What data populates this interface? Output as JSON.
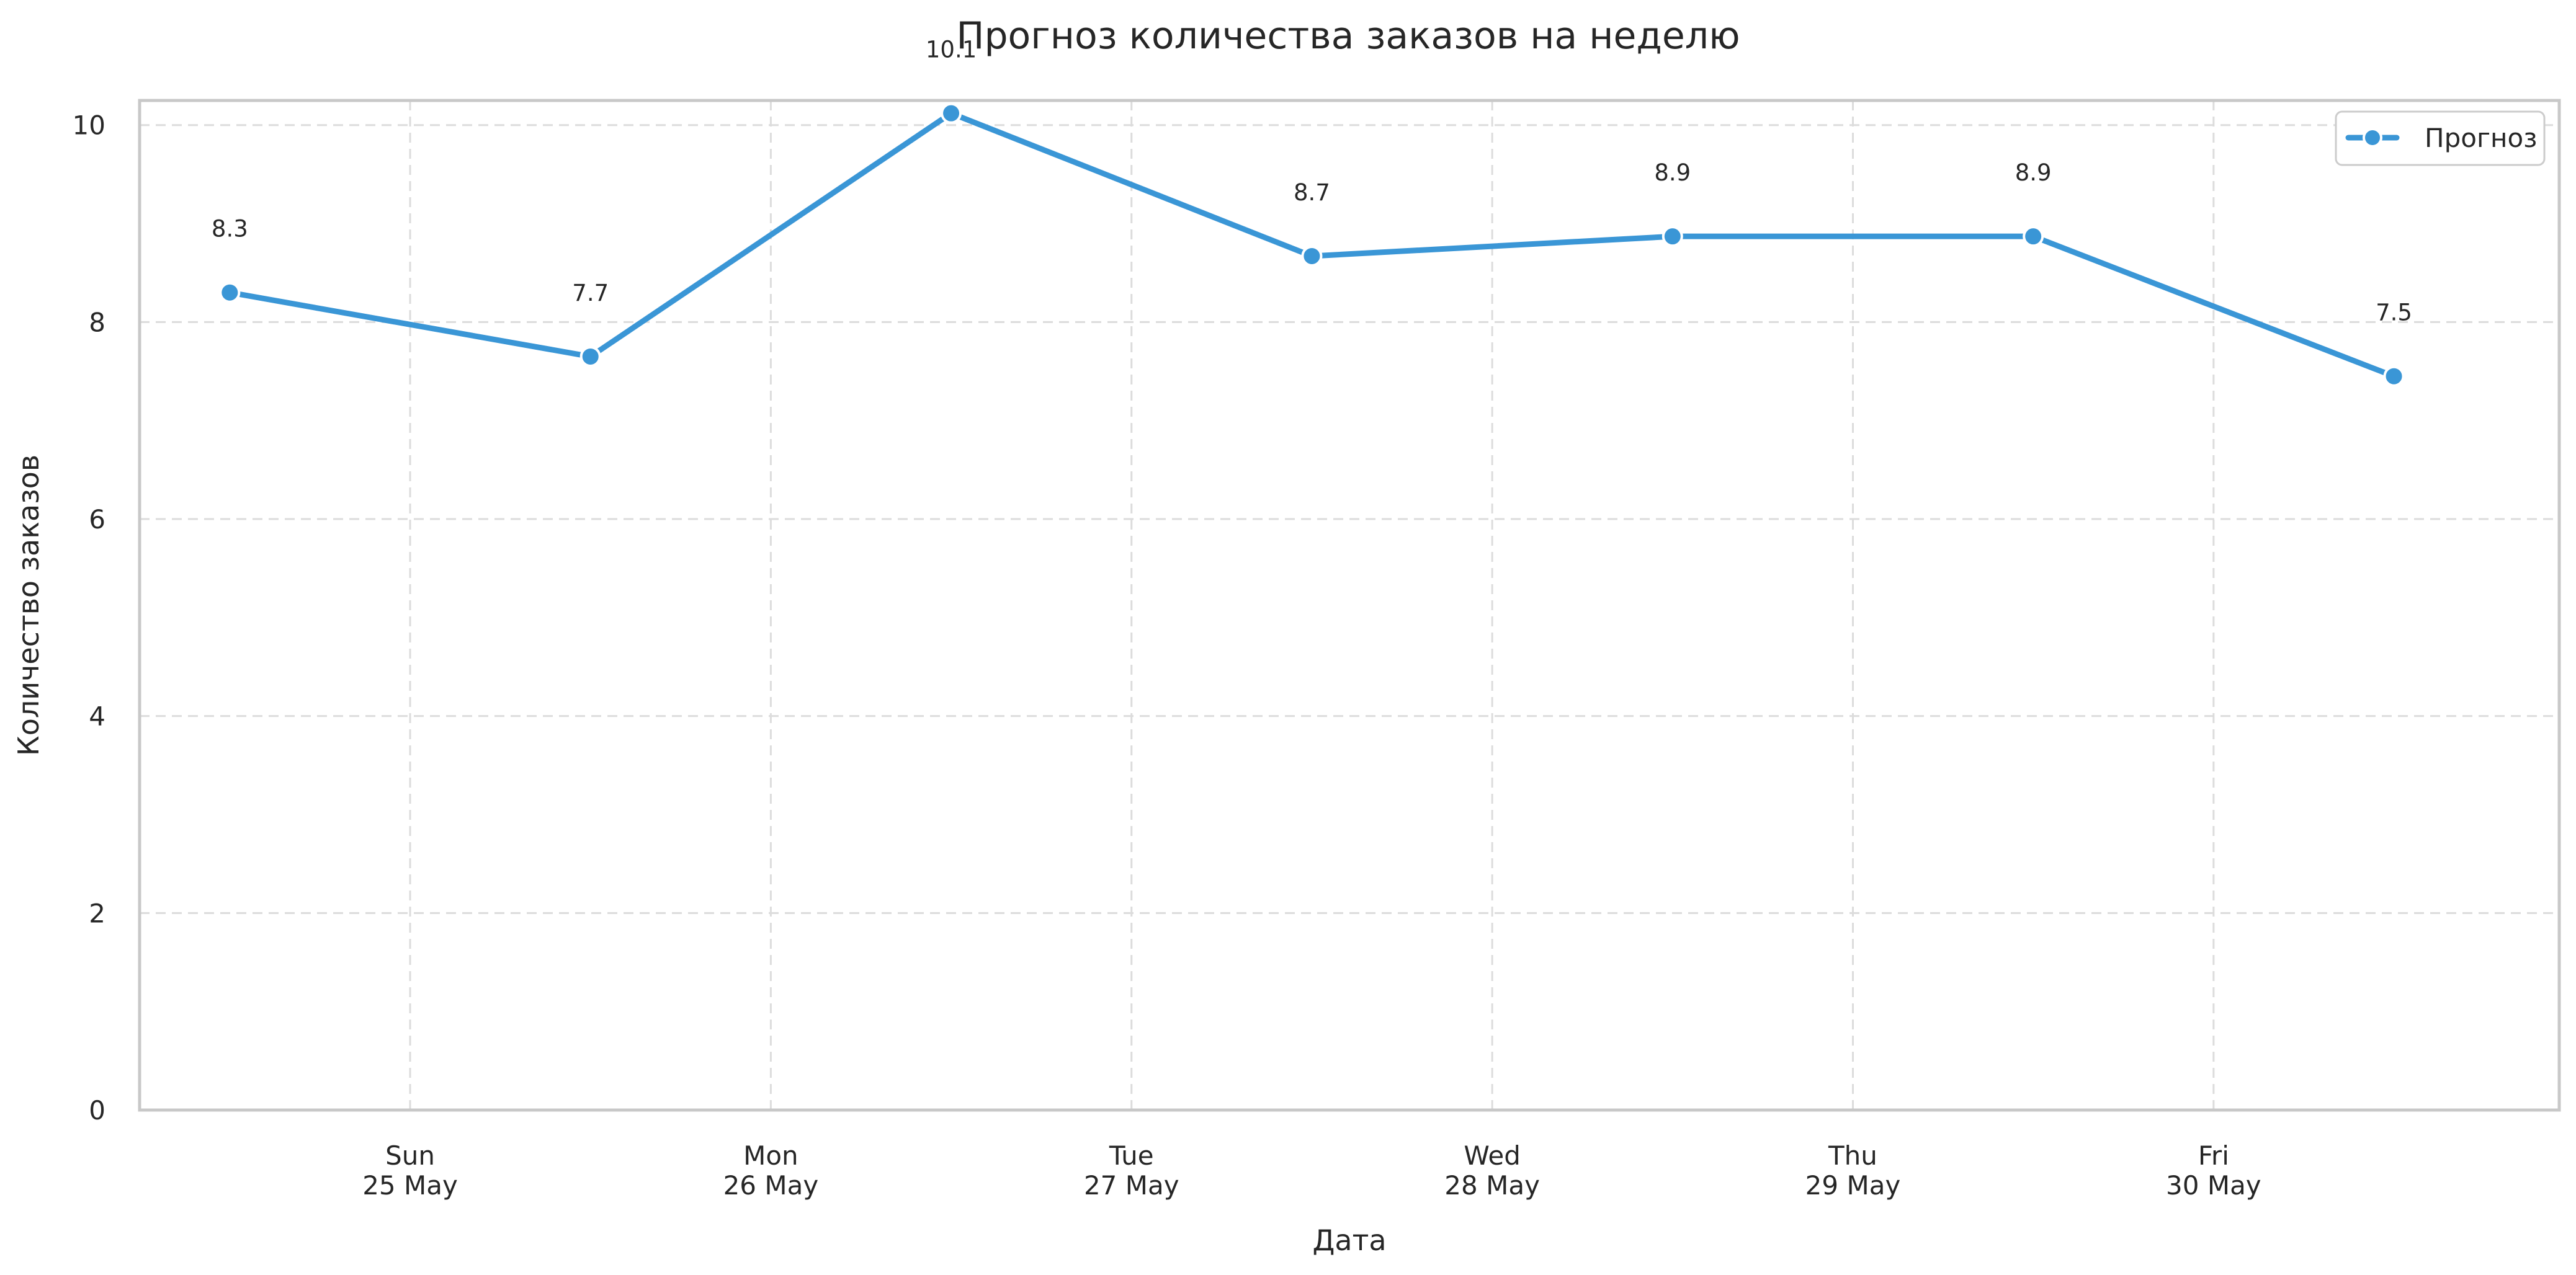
{
  "chart_data": {
    "type": "line",
    "title": "Прогноз количества заказов на неделю",
    "xlabel": "Дата",
    "ylabel": "Количество заказов",
    "ylim": [
      0,
      10.25
    ],
    "xlim": [
      "2025-05-24T06:00",
      "2025-05-30T23:00"
    ],
    "grid": true,
    "legend_position": "top-right",
    "series": [
      {
        "name": "Прогноз",
        "color": "#3a96d6",
        "marker": "circle",
        "points": [
          {
            "x": "2025-05-24T12:00",
            "y": 8.3,
            "label": "8.3"
          },
          {
            "x": "2025-05-25T12:00",
            "y": 7.65,
            "label": "7.7"
          },
          {
            "x": "2025-05-26T12:00",
            "y": 10.12,
            "label": "10.1"
          },
          {
            "x": "2025-05-27T12:00",
            "y": 8.67,
            "label": "8.7"
          },
          {
            "x": "2025-05-28T12:00",
            "y": 8.87,
            "label": "8.9"
          },
          {
            "x": "2025-05-29T12:00",
            "y": 8.87,
            "label": "8.9"
          },
          {
            "x": "2025-05-30T12:00",
            "y": 7.45,
            "label": "7.5"
          }
        ]
      }
    ],
    "y_ticks": [
      {
        "value": 0,
        "label": "0"
      },
      {
        "value": 2,
        "label": "2"
      },
      {
        "value": 4,
        "label": "4"
      },
      {
        "value": 6,
        "label": "6"
      },
      {
        "value": 8,
        "label": "8"
      },
      {
        "value": 10,
        "label": "10"
      }
    ],
    "x_ticks": [
      {
        "value": "2025-05-25T00:00",
        "line1": "Sun",
        "line2": "25 May"
      },
      {
        "value": "2025-05-26T00:00",
        "line1": "Mon",
        "line2": "26 May"
      },
      {
        "value": "2025-05-27T00:00",
        "line1": "Tue",
        "line2": "27 May"
      },
      {
        "value": "2025-05-28T00:00",
        "line1": "Wed",
        "line2": "28 May"
      },
      {
        "value": "2025-05-29T00:00",
        "line1": "Thu",
        "line2": "29 May"
      },
      {
        "value": "2025-05-30T00:00",
        "line1": "Fri",
        "line2": "30 May"
      }
    ]
  }
}
